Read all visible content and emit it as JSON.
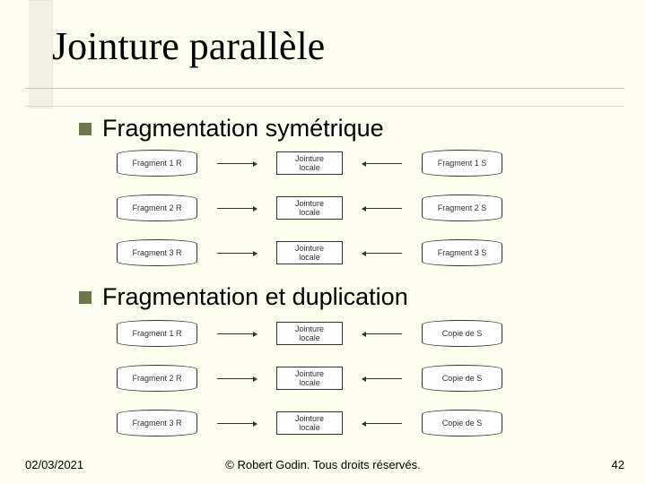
{
  "title": "Jointure parallèle",
  "bullets": {
    "first": "Fragmentation symétrique",
    "second": "Fragmentation et duplication"
  },
  "diagram1": {
    "center_label": "Jointure\nlocale",
    "rows": [
      {
        "left": "Fragment 1 R",
        "right": "Fragment 1 S"
      },
      {
        "left": "Fragment 2 R",
        "right": "Fragment 2 S"
      },
      {
        "left": "Fragment 3 R",
        "right": "Fragment 3 S"
      }
    ]
  },
  "diagram2": {
    "center_label": "Jointure\nlocale",
    "rows": [
      {
        "left": "Fragment 1 R",
        "right": "Copie de S"
      },
      {
        "left": "Fragment 2 R",
        "right": "Copie de S"
      },
      {
        "left": "Fragment 3 R",
        "right": "Copie de S"
      }
    ]
  },
  "footer": {
    "date": "02/03/2021",
    "copyright": "© Robert Godin. Tous droits réservés.",
    "page": "42"
  },
  "colors": {
    "background": "#fdfdef",
    "bullet": "#6c774c",
    "accent": "#f0f1e2"
  },
  "typography": {
    "title_fontsize_pt": 33,
    "bullet_fontsize_pt": 20,
    "diagram_fontsize_pt": 7,
    "footer_fontsize_pt": 10,
    "title_family": "Times New Roman",
    "body_family": "Arial"
  }
}
